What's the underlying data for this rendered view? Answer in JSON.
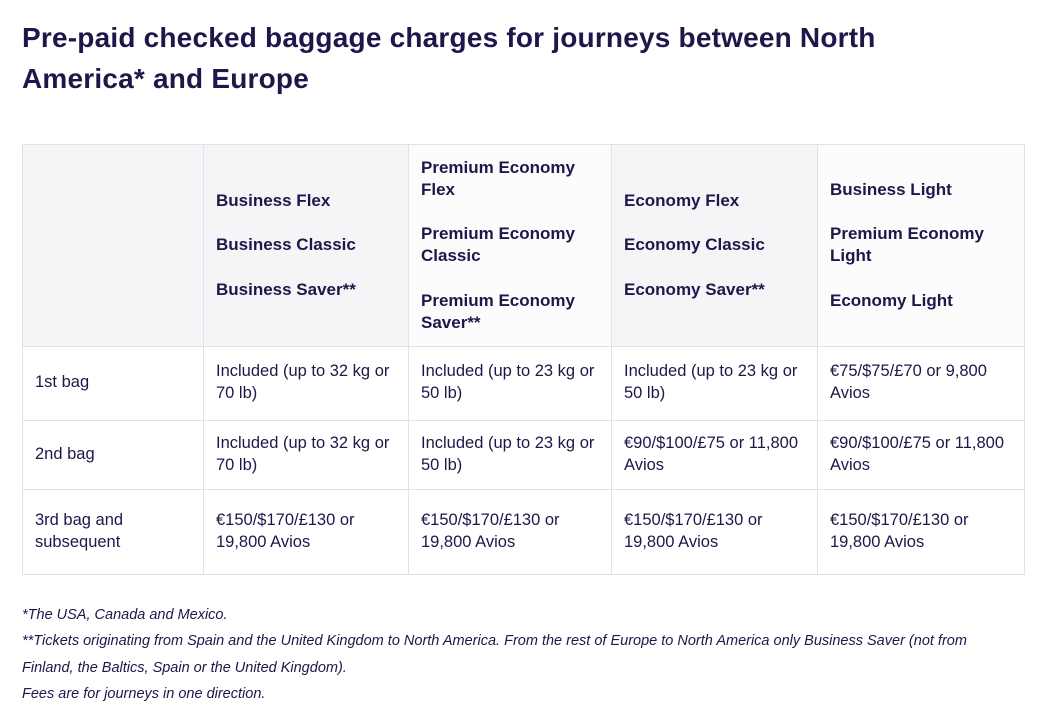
{
  "page": {
    "title": "Pre-paid checked baggage charges for journeys between North America* and Europe"
  },
  "table": {
    "columns": [
      {
        "lines": [
          "",
          "",
          ""
        ]
      },
      {
        "lines": [
          "Business Flex",
          "Business Classic",
          "Business Saver**"
        ]
      },
      {
        "lines": [
          "Premium Economy Flex",
          "Premium Economy Classic",
          "Premium Economy Saver**"
        ]
      },
      {
        "lines": [
          "Economy Flex",
          "Economy Classic",
          "Economy Saver**"
        ]
      },
      {
        "lines": [
          "Business Light",
          "Premium Economy Light",
          "Economy Light"
        ]
      }
    ],
    "rows": [
      {
        "label": "1st bag",
        "cells": [
          "Included (up to 32 kg or 70 lb)",
          "Included (up to 23 kg or 50 lb)",
          "Included (up to 23 kg or 50 lb)",
          "€75/$75/£70 or 9,800 Avios"
        ]
      },
      {
        "label": "2nd bag",
        "cells": [
          "Included (up to 32 kg or 70 lb)",
          "Included (up to 23 kg or 50 lb)",
          "€90/$100/£75 or 11,800 Avios",
          "€90/$100/£75 or 11,800 Avios"
        ]
      },
      {
        "label": "3rd bag and subsequent",
        "cells": [
          "€150/$170/£130 or 19,800 Avios",
          "€150/$170/£130 or 19,800 Avios",
          "€150/$170/£130 or 19,800 Avios",
          "€150/$170/£130 or 19,800 Avios"
        ]
      }
    ]
  },
  "footnotes": [
    "*The USA, Canada and Mexico.",
    "**Tickets originating from Spain and the United Kingdom to North America. From the rest of Europe to North America only Business Saver (not from Finland, the Baltics, Spain or the United Kingdom).",
    "Fees are for journeys in one direction."
  ],
  "colors": {
    "ink": "#1e1749",
    "border": "#e1e1e6",
    "header_bg": "#f5f5f7",
    "header_bg_alt": "#fcfcfd",
    "page_bg": "#ffffff"
  }
}
